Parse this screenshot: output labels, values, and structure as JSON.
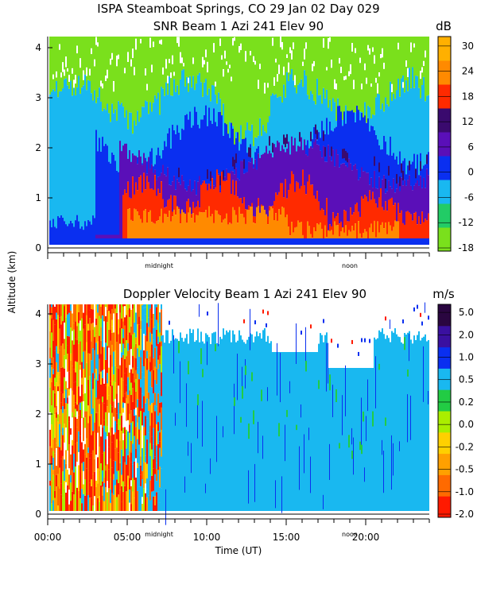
{
  "chart_data": [
    {
      "type": "heatmap",
      "title": "ISPA Steamboat Springs, CO  29 Jan 02 Day 029",
      "subtitle": "SNR Beam 1 Azi 241 Elev 90",
      "ylabel": "Altitude (km)",
      "ylim": [
        0,
        4.2
      ],
      "y_ticks": [
        "0",
        "1",
        "2",
        "3",
        "4"
      ],
      "x_markers": [
        "midnight",
        "noon"
      ],
      "colorbar_unit": "dB",
      "colorbar_labels": [
        "-18",
        "-12",
        "-6",
        "0",
        "6",
        "12",
        "18",
        "24",
        "30"
      ],
      "colorbar_colors": [
        "#7ae01c",
        "#22cc66",
        "#19b8f0",
        "#0a2ff0",
        "#5a0fb8",
        "#3a0a6e",
        "#ff2a00",
        "#ff8a00",
        "#ffb000"
      ]
    },
    {
      "type": "heatmap",
      "title": "Doppler Velocity Beam 1 Azi 241 Elev 90",
      "xlabel": "Time (UT)",
      "ylabel": "Altitude (km)",
      "ylim": [
        0,
        4.2
      ],
      "xlim": [
        0,
        24
      ],
      "x_ticks": [
        "00:00",
        "05:00",
        "10:00",
        "15:00",
        "20:00"
      ],
      "x_markers": [
        "midnight",
        "noon"
      ],
      "y_ticks": [
        "0",
        "1",
        "2",
        "3",
        "4"
      ],
      "colorbar_unit": "m/s",
      "colorbar_labels": [
        "-2.0",
        "-1.0",
        "-0.5",
        "-0.2",
        "0.0",
        "0.2",
        "0.5",
        "1.0",
        "2.0",
        "5.0"
      ],
      "colorbar_colors": [
        "#ff1a00",
        "#ff6a00",
        "#ffa000",
        "#ffd000",
        "#aaee00",
        "#22cc44",
        "#19b8f0",
        "#0a2ff0",
        "#3a10a0",
        "#2a0640"
      ]
    }
  ]
}
